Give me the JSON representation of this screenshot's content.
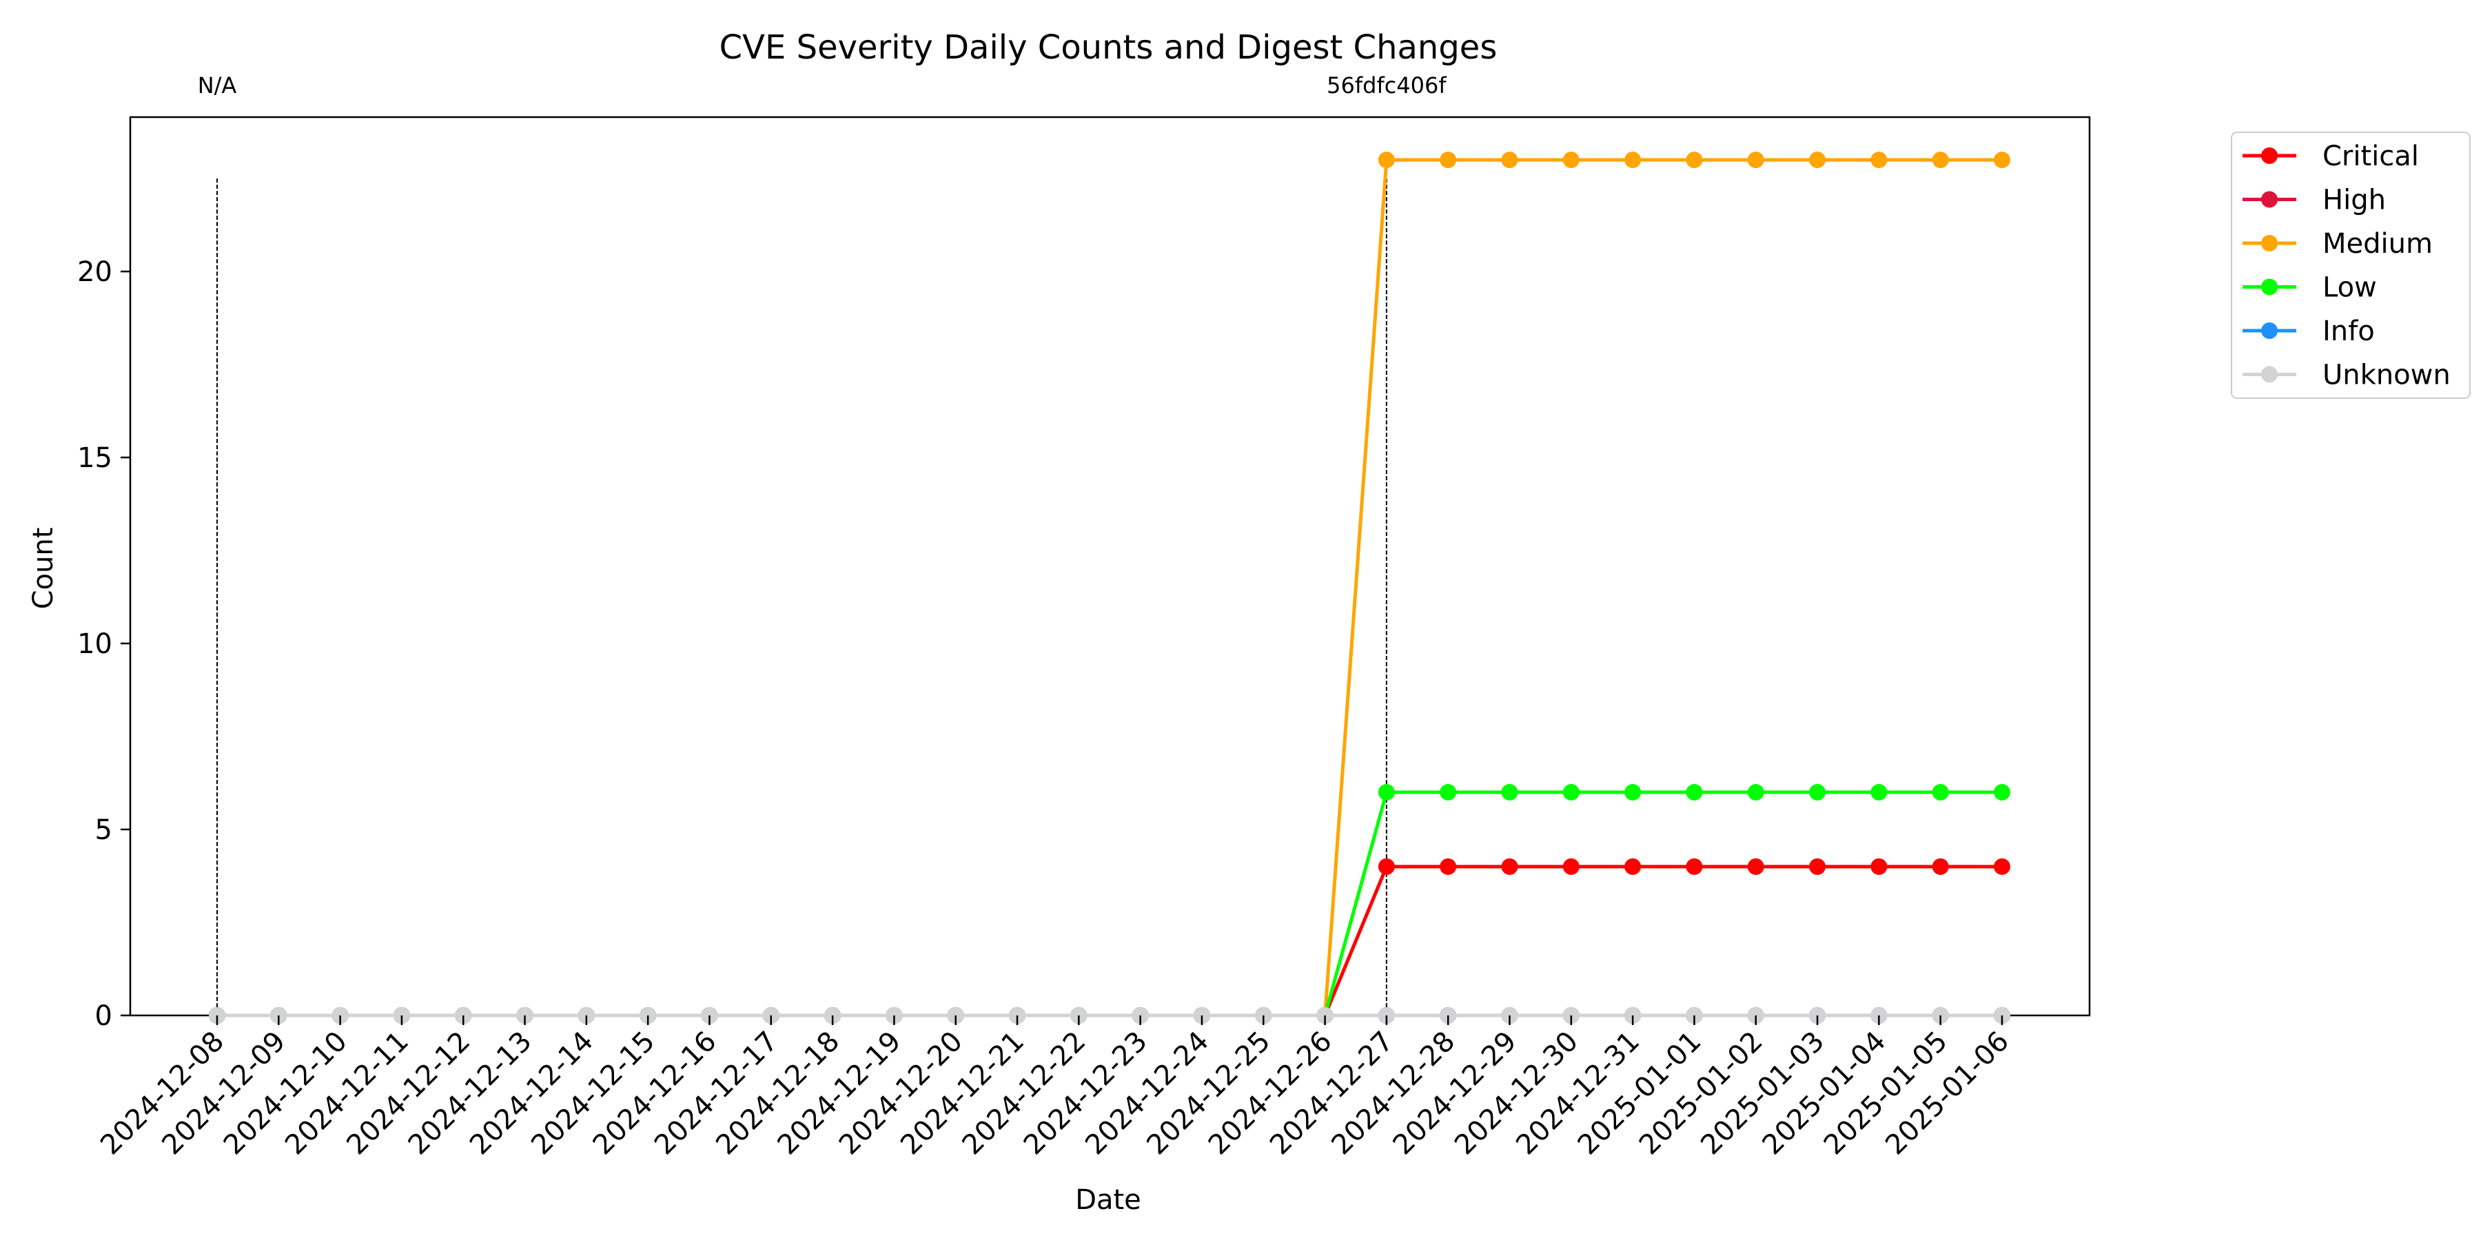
{
  "chart_data": {
    "type": "line",
    "title": "CVE Severity Daily Counts and Digest Changes",
    "xlabel": "Date",
    "ylabel": "Count",
    "x": [
      "2024-12-08",
      "2024-12-09",
      "2024-12-10",
      "2024-12-11",
      "2024-12-12",
      "2024-12-13",
      "2024-12-14",
      "2024-12-15",
      "2024-12-16",
      "2024-12-17",
      "2024-12-18",
      "2024-12-19",
      "2024-12-20",
      "2024-12-21",
      "2024-12-22",
      "2024-12-23",
      "2024-12-24",
      "2024-12-25",
      "2024-12-26",
      "2024-12-27",
      "2024-12-28",
      "2024-12-29",
      "2024-12-30",
      "2024-12-31",
      "2025-01-01",
      "2025-01-02",
      "2025-01-03",
      "2025-01-04",
      "2025-01-05",
      "2025-01-06"
    ],
    "ylim": [
      0,
      24.15
    ],
    "yticks": [
      0,
      5,
      10,
      15,
      20
    ],
    "grid": false,
    "legend_position": "outside-right-top",
    "series": [
      {
        "name": "Critical",
        "color": "#ff0000",
        "values": [
          0,
          0,
          0,
          0,
          0,
          0,
          0,
          0,
          0,
          0,
          0,
          0,
          0,
          0,
          0,
          0,
          0,
          0,
          0,
          4,
          4,
          4,
          4,
          4,
          4,
          4,
          4,
          4,
          4,
          4
        ]
      },
      {
        "name": "High",
        "color": "#dc143c",
        "values": [
          0,
          0,
          0,
          0,
          0,
          0,
          0,
          0,
          0,
          0,
          0,
          0,
          0,
          0,
          0,
          0,
          0,
          0,
          0,
          0,
          0,
          0,
          0,
          0,
          0,
          0,
          0,
          0,
          0,
          0
        ]
      },
      {
        "name": "Medium",
        "color": "#ffa500",
        "values": [
          0,
          0,
          0,
          0,
          0,
          0,
          0,
          0,
          0,
          0,
          0,
          0,
          0,
          0,
          0,
          0,
          0,
          0,
          0,
          23,
          23,
          23,
          23,
          23,
          23,
          23,
          23,
          23,
          23,
          23
        ]
      },
      {
        "name": "Low",
        "color": "#00ff00",
        "values": [
          0,
          0,
          0,
          0,
          0,
          0,
          0,
          0,
          0,
          0,
          0,
          0,
          0,
          0,
          0,
          0,
          0,
          0,
          0,
          6,
          6,
          6,
          6,
          6,
          6,
          6,
          6,
          6,
          6,
          6
        ]
      },
      {
        "name": "Info",
        "color": "#1e90ff",
        "values": [
          0,
          0,
          0,
          0,
          0,
          0,
          0,
          0,
          0,
          0,
          0,
          0,
          0,
          0,
          0,
          0,
          0,
          0,
          0,
          0,
          0,
          0,
          0,
          0,
          0,
          0,
          0,
          0,
          0,
          0
        ]
      },
      {
        "name": "Unknown",
        "color": "#d3d3d3",
        "values": [
          0,
          0,
          0,
          0,
          0,
          0,
          0,
          0,
          0,
          0,
          0,
          0,
          0,
          0,
          0,
          0,
          0,
          0,
          0,
          0,
          0,
          0,
          0,
          0,
          0,
          0,
          0,
          0,
          0,
          0
        ]
      }
    ],
    "digest_changes": [
      {
        "date": "2024-12-08",
        "label": "N/A"
      },
      {
        "date": "2024-12-27",
        "label": "56fdfc406f"
      }
    ]
  }
}
